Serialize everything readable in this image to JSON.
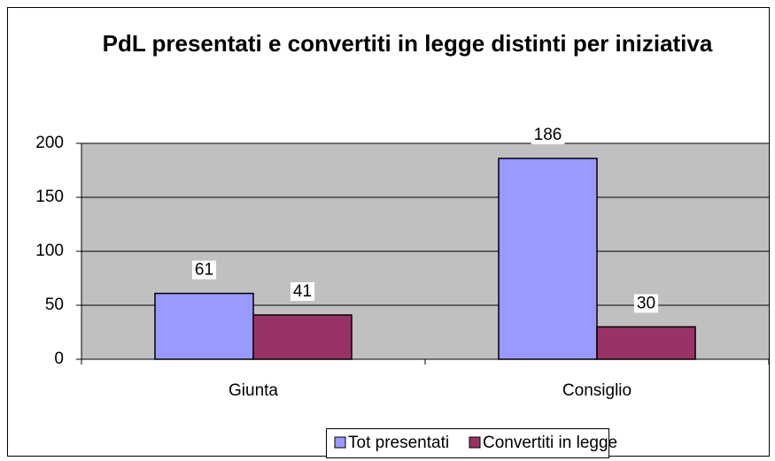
{
  "chart_data": {
    "type": "bar",
    "title": "PdL presentati e convertiti in legge distinti per iniziativa",
    "categories": [
      "Giunta",
      "Consiglio"
    ],
    "series": [
      {
        "name": "Tot presentati",
        "color": "#9999ff",
        "values": [
          61,
          186
        ]
      },
      {
        "name": "Convertiti in legge",
        "color": "#993366",
        "values": [
          41,
          30
        ]
      }
    ],
    "ylim": [
      0,
      200
    ],
    "yticks": [
      0,
      50,
      100,
      150,
      200
    ],
    "grid": true,
    "legend": "bottom"
  }
}
